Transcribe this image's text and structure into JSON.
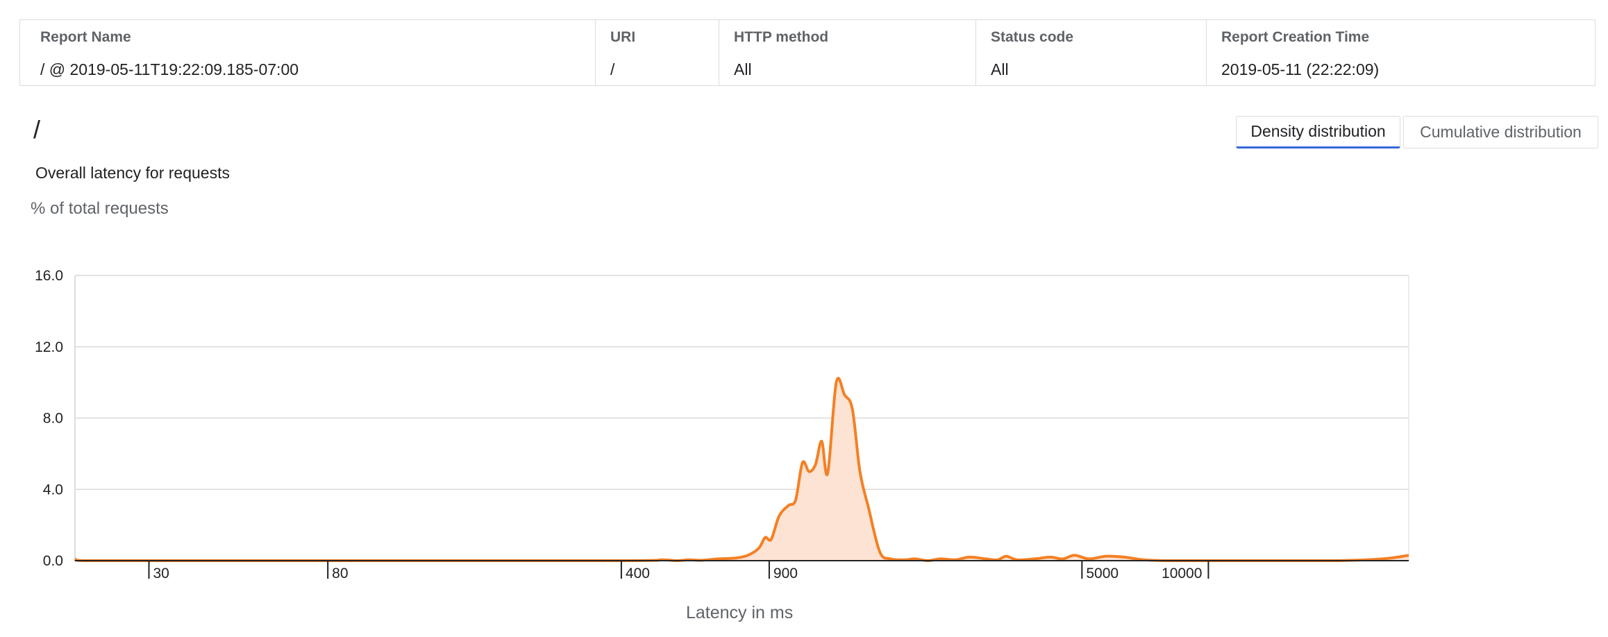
{
  "report_table": {
    "columns": [
      {
        "header": "Report Name",
        "value": "/ @ 2019-05-11T19:22:09.185-07:00"
      },
      {
        "header": "URI",
        "value": "/"
      },
      {
        "header": "HTTP method",
        "value": "All"
      },
      {
        "header": "Status code",
        "value": "All"
      },
      {
        "header": "Report Creation Time",
        "value": "2019-05-11 (22:22:09)"
      }
    ]
  },
  "page": {
    "title": "/",
    "chart_subtitle": "Overall latency for requests"
  },
  "toggle": {
    "density_label": "Density distribution",
    "cumulative_label": "Cumulative distribution",
    "selected": "density"
  },
  "colors": {
    "line": "#f48024",
    "fill": "#fde3d3",
    "grid": "#d9d9d9",
    "active_underline": "#3367d6"
  },
  "chart_data": {
    "type": "area",
    "title": "Overall latency for requests",
    "xlabel": "Latency in ms",
    "ylabel": "% of total requests",
    "x_scale": "log",
    "xlim": [
      20,
      30000
    ],
    "ylim": [
      0,
      16
    ],
    "y_ticks": [
      "0.0",
      "4.0",
      "8.0",
      "12.0",
      "16.0"
    ],
    "x_ticks": [
      "30",
      "80",
      "400",
      "900",
      "5000",
      "10000"
    ],
    "grid": true,
    "series": [
      {
        "points": [
          [
            20,
            0.1
          ],
          [
            21,
            0.0
          ],
          [
            30,
            0.0
          ],
          [
            80,
            0.0
          ],
          [
            400,
            0.0
          ],
          [
            500,
            0.05
          ],
          [
            540,
            0.0
          ],
          [
            580,
            0.05
          ],
          [
            620,
            0.02
          ],
          [
            680,
            0.1
          ],
          [
            750,
            0.15
          ],
          [
            800,
            0.3
          ],
          [
            850,
            0.7
          ],
          [
            880,
            1.3
          ],
          [
            910,
            1.2
          ],
          [
            950,
            2.5
          ],
          [
            1000,
            3.1
          ],
          [
            1040,
            3.4
          ],
          [
            1080,
            5.5
          ],
          [
            1120,
            5.0
          ],
          [
            1160,
            5.4
          ],
          [
            1200,
            6.7
          ],
          [
            1240,
            4.9
          ],
          [
            1300,
            10.0
          ],
          [
            1360,
            9.3
          ],
          [
            1420,
            8.5
          ],
          [
            1480,
            5.0
          ],
          [
            1550,
            3.0
          ],
          [
            1650,
            0.5
          ],
          [
            1750,
            0.1
          ],
          [
            1900,
            0.05
          ],
          [
            2000,
            0.1
          ],
          [
            2150,
            0.0
          ],
          [
            2300,
            0.1
          ],
          [
            2500,
            0.05
          ],
          [
            2700,
            0.2
          ],
          [
            2950,
            0.1
          ],
          [
            3150,
            0.05
          ],
          [
            3300,
            0.25
          ],
          [
            3500,
            0.05
          ],
          [
            3850,
            0.1
          ],
          [
            4200,
            0.2
          ],
          [
            4500,
            0.1
          ],
          [
            4800,
            0.3
          ],
          [
            5200,
            0.1
          ],
          [
            5700,
            0.25
          ],
          [
            6300,
            0.2
          ],
          [
            7000,
            0.05
          ],
          [
            8000,
            0.0
          ],
          [
            12000,
            0.0
          ],
          [
            20000,
            0.0
          ],
          [
            26000,
            0.1
          ],
          [
            30000,
            0.3
          ]
        ]
      }
    ]
  }
}
